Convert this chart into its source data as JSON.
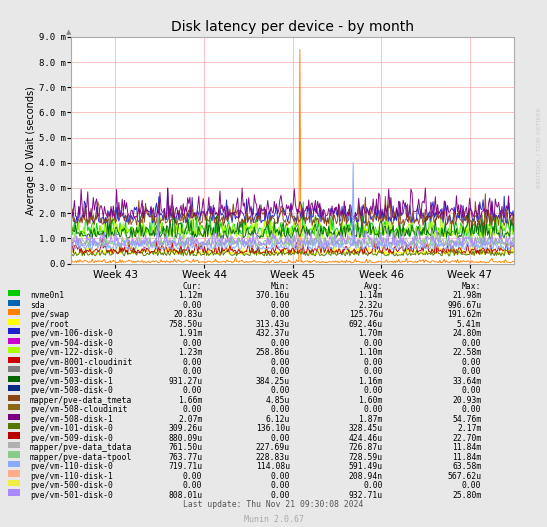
{
  "title": "Disk latency per device - by month",
  "ylabel": "Average IO Wait (seconds)",
  "x_labels": [
    "Week 43",
    "Week 44",
    "Week 45",
    "Week 46",
    "Week 47"
  ],
  "ylim_max": 0.009,
  "ytick_labels": [
    "0.0",
    "1.0 m",
    "2.0 m",
    "3.0 m",
    "4.0 m",
    "5.0 m",
    "6.0 m",
    "7.0 m",
    "8.0 m",
    "9.0 m"
  ],
  "background_color": "#e8e8e8",
  "plot_bg_color": "#ffffff",
  "grid_color": "#ffaaaa",
  "watermark": "RRDTOOL / TOBI OETIKER",
  "footer": "Munin 2.0.67",
  "last_update": "Last update: Thu Nov 21 09:30:08 2024",
  "legend_entries": [
    {
      "label": "nvme0n1",
      "color": "#00cc00",
      "cur": "1.12m",
      "min": "370.16u",
      "avg": "1.14m",
      "max": "21.98m"
    },
    {
      "label": "sda",
      "color": "#0066b3",
      "cur": "0.00",
      "min": "0.00",
      "avg": "2.32u",
      "max": "996.67u"
    },
    {
      "label": "pve/swap",
      "color": "#ff7f00",
      "cur": "20.83u",
      "min": "0.00",
      "avg": "125.76u",
      "max": "191.62m"
    },
    {
      "label": "pve/root",
      "color": "#ffff00",
      "cur": "758.50u",
      "min": "313.43u",
      "avg": "692.46u",
      "max": "5.41m"
    },
    {
      "label": "pve/vm-106-disk-0",
      "color": "#2020cc",
      "cur": "1.91m",
      "min": "432.37u",
      "avg": "1.70m",
      "max": "24.80m"
    },
    {
      "label": "pve/vm-504-disk-0",
      "color": "#cc00cc",
      "cur": "0.00",
      "min": "0.00",
      "avg": "0.00",
      "max": "0.00"
    },
    {
      "label": "pve/vm-122-disk-0",
      "color": "#aaff00",
      "cur": "1.23m",
      "min": "258.86u",
      "avg": "1.10m",
      "max": "22.58m"
    },
    {
      "label": "pve/vm-8001-cloudinit",
      "color": "#cc0000",
      "cur": "0.00",
      "min": "0.00",
      "avg": "0.00",
      "max": "0.00"
    },
    {
      "label": "pve/vm-503-disk-0",
      "color": "#808080",
      "cur": "0.00",
      "min": "0.00",
      "avg": "0.00",
      "max": "0.00"
    },
    {
      "label": "pve/vm-503-disk-1",
      "color": "#006600",
      "cur": "931.27u",
      "min": "384.25u",
      "avg": "1.16m",
      "max": "33.64m"
    },
    {
      "label": "pve/vm-508-disk-0",
      "color": "#002a84",
      "cur": "0.00",
      "min": "0.00",
      "avg": "0.00",
      "max": "0.00"
    },
    {
      "label": "mapper/pve-data_tmeta",
      "color": "#8b4513",
      "cur": "1.66m",
      "min": "4.85u",
      "avg": "1.60m",
      "max": "20.93m"
    },
    {
      "label": "pve/vm-508-cloudinit",
      "color": "#8b6914",
      "cur": "0.00",
      "min": "0.00",
      "avg": "0.00",
      "max": "0.00"
    },
    {
      "label": "pve/vm-508-disk-1",
      "color": "#7b0080",
      "cur": "2.07m",
      "min": "6.12u",
      "avg": "1.87m",
      "max": "54.76m"
    },
    {
      "label": "pve/vm-101-disk-0",
      "color": "#557700",
      "cur": "309.26u",
      "min": "136.10u",
      "avg": "328.45u",
      "max": "2.17m"
    },
    {
      "label": "pve/vm-509-disk-0",
      "color": "#bb0000",
      "cur": "880.09u",
      "min": "0.00",
      "avg": "424.46u",
      "max": "22.70m"
    },
    {
      "label": "mapper/pve-data_tdata",
      "color": "#b0b0b0",
      "cur": "761.50u",
      "min": "227.69u",
      "avg": "726.87u",
      "max": "11.84m"
    },
    {
      "label": "mapper/pve-data-tpool",
      "color": "#88cc88",
      "cur": "763.77u",
      "min": "228.83u",
      "avg": "728.59u",
      "max": "11.84m"
    },
    {
      "label": "pve/vm-110-disk-0",
      "color": "#88aaff",
      "cur": "719.71u",
      "min": "114.08u",
      "avg": "591.49u",
      "max": "63.58m"
    },
    {
      "label": "pve/vm-110-disk-1",
      "color": "#ffaa88",
      "cur": "0.00",
      "min": "0.00",
      "avg": "208.94n",
      "max": "567.62u"
    },
    {
      "label": "pve/vm-500-disk-0",
      "color": "#eeee44",
      "cur": "0.00",
      "min": "0.00",
      "avg": "0.00",
      "max": "0.00"
    },
    {
      "label": "pve/vm-501-disk-0",
      "color": "#aa88ff",
      "cur": "808.01u",
      "min": "0.00",
      "avg": "932.71u",
      "max": "25.80m"
    }
  ],
  "n_points": 400,
  "seed": 42
}
